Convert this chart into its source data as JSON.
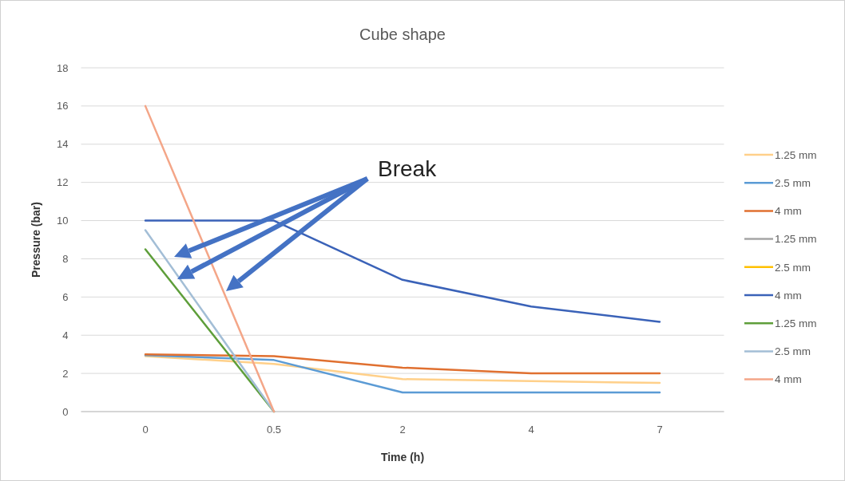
{
  "chart_data": {
    "type": "line",
    "title": "Cube shape",
    "xlabel": "Time (h)",
    "ylabel": "Pressure (bar)",
    "categories": [
      "0",
      "0.5",
      "2",
      "4",
      "7"
    ],
    "series": [
      {
        "name": "1.25 mm",
        "color": "#ffd08a",
        "values": [
          2.9,
          2.5,
          1.7,
          1.6,
          1.5
        ]
      },
      {
        "name": "2.5 mm",
        "color": "#5b9bd5",
        "values": [
          2.95,
          2.7,
          1.0,
          1.0,
          1.0
        ]
      },
      {
        "name": "4 mm",
        "color": "#e07030",
        "values": [
          3.0,
          2.9,
          2.3,
          2.0,
          2.0
        ]
      },
      {
        "name": "1.25 mm",
        "color": "#a5a5a5",
        "values": [
          null,
          null,
          null,
          null,
          null
        ]
      },
      {
        "name": "2.5 mm",
        "color": "#ffc000",
        "values": [
          null,
          null,
          null,
          null,
          null
        ]
      },
      {
        "name": "4 mm",
        "color": "#3a62b8",
        "values": [
          10,
          10,
          6.9,
          5.5,
          4.7
        ]
      },
      {
        "name": "1.25 mm",
        "color": "#5e9e3a",
        "values": [
          8.5,
          0,
          null,
          null,
          null
        ]
      },
      {
        "name": "2.5 mm",
        "color": "#a3bed6",
        "values": [
          9.5,
          0,
          null,
          null,
          null
        ]
      },
      {
        "name": "4 mm",
        "color": "#f4a688",
        "values": [
          16,
          0,
          null,
          null,
          null
        ]
      }
    ],
    "ylim": [
      0,
      18
    ],
    "yticks": [
      0,
      2,
      4,
      6,
      8,
      10,
      12,
      14,
      16,
      18
    ],
    "grid": "y",
    "legend": "right",
    "line_style": "solid",
    "annotations": [
      "Break"
    ]
  }
}
